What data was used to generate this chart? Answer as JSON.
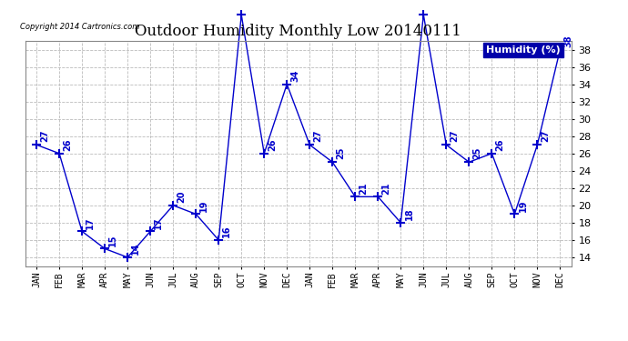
{
  "title": "Outdoor Humidity Monthly Low 20140111",
  "copyright": "Copyright 2014 Cartronics.com",
  "legend_label": "Humidity (%)",
  "x_labels": [
    "JAN",
    "FEB",
    "MAR",
    "APR",
    "MAY",
    "JUN",
    "JUL",
    "AUG",
    "SEP",
    "OCT",
    "NOV",
    "DEC",
    "JAN",
    "FEB",
    "MAR",
    "APR",
    "MAY",
    "JUN",
    "JUL",
    "AUG",
    "SEP",
    "OCT",
    "NOV",
    "DEC"
  ],
  "y_values": [
    27,
    26,
    17,
    15,
    14,
    17,
    20,
    19,
    16,
    42,
    26,
    34,
    27,
    25,
    21,
    21,
    18,
    42,
    27,
    25,
    26,
    19,
    27,
    38
  ],
  "ylim": [
    13,
    39
  ],
  "yticks": [
    14,
    16,
    18,
    20,
    22,
    24,
    26,
    28,
    30,
    32,
    34,
    36,
    38
  ],
  "line_color": "#0000cc",
  "marker": "+",
  "marker_size": 7,
  "marker_linewidth": 1.5,
  "bg_color": "#ffffff",
  "grid_color": "#bbbbbb",
  "title_fontsize": 12,
  "tick_fontsize": 7,
  "annotation_fontsize": 7,
  "legend_bg": "#0000aa",
  "legend_fg": "#ffffff",
  "fig_width": 6.9,
  "fig_height": 3.75,
  "dpi": 100
}
